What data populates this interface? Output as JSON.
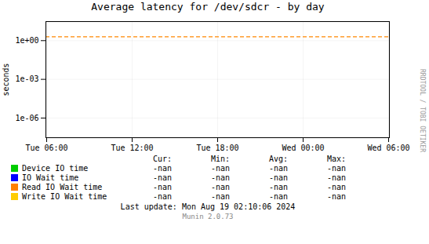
{
  "chart_data": {
    "type": "line",
    "title": "Average latency for /dev/sdcr - by day",
    "ylabel": "seconds",
    "categories": [
      "Tue 06:00",
      "Tue 12:00",
      "Tue 18:00",
      "Wed 00:00",
      "Wed 06:00"
    ],
    "series": [
      {
        "name": "Device IO time",
        "color": "#00cc00",
        "values": [
          null,
          null,
          null,
          null,
          null
        ],
        "stats": [
          "-nan",
          "-nan",
          "-nan",
          "-nan"
        ]
      },
      {
        "name": "IO Wait time",
        "color": "#0000ff",
        "values": [
          null,
          null,
          null,
          null,
          null
        ],
        "stats": [
          "-nan",
          "-nan",
          "-nan",
          "-nan"
        ]
      },
      {
        "name": "Read IO Wait time",
        "color": "#ff7f00",
        "values": [
          null,
          null,
          null,
          null,
          null
        ],
        "stats": [
          "-nan",
          "-nan",
          "-nan",
          "-nan"
        ]
      },
      {
        "name": "Write IO Wait time",
        "color": "#ffcc00",
        "values": [
          null,
          null,
          null,
          null,
          null
        ],
        "stats": [
          "-nan",
          "-nan",
          "-nan",
          "-nan"
        ]
      }
    ],
    "stats_headers": [
      "Cur:",
      "Min:",
      "Avg:",
      "Max:"
    ],
    "ylim": [
      3e-08,
      30
    ],
    "yticks": [
      {
        "value": 1e-06,
        "label": "1e-06"
      },
      {
        "value": 0.001,
        "label": "1e-03"
      },
      {
        "value": 1,
        "label": "1e+00"
      }
    ],
    "log": "y",
    "grid": true,
    "legend": "bottom",
    "annotations": [
      {
        "type": "hline",
        "y": 2.0,
        "color": "#ff8800",
        "line_style": "dashed"
      }
    ],
    "last_update": "Last update: Mon Aug 19 02:10:06 2024",
    "footer": "Munin 2.0.73",
    "watermark": "RRDTOOL / TOBI OETIKER"
  }
}
